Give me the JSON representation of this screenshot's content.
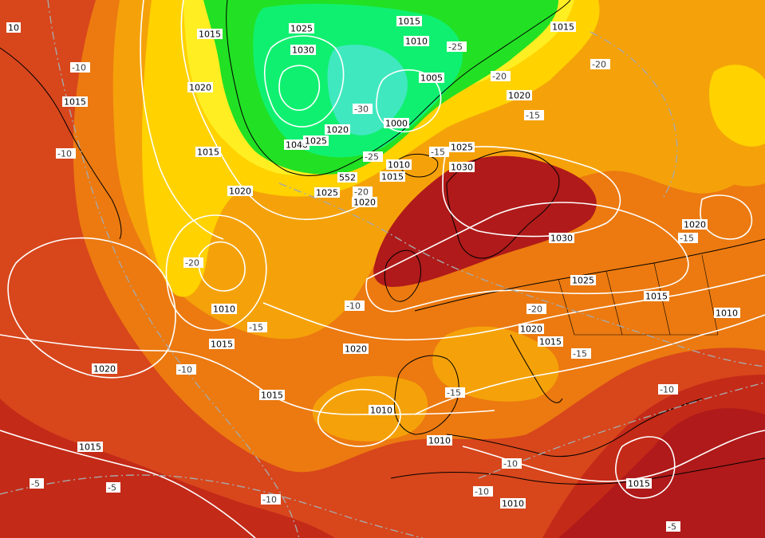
{
  "map": {
    "colors": {
      "background": "#b01a1a",
      "band_5": "#c42a18",
      "band_10": "#d8461c",
      "band_15": "#ec7a10",
      "band_20": "#f5a20a",
      "band_25": "#ffd200",
      "band_30": "#ffee22",
      "band_35": "#22e024",
      "band_40": "#10f070",
      "band_45": "#40e8c0",
      "pressure_contour": "#ffffff",
      "temp_contour": "#a8a8a8",
      "coastline": "#000000"
    },
    "pressure_labels": [
      "10",
      "1015",
      "1025",
      "1015",
      "1010",
      "1015",
      "1030",
      "1020",
      "1015",
      "1005",
      "1020",
      "1040",
      "1025",
      "1020",
      "1000",
      "1015",
      "1010",
      "1025",
      "1030",
      "1015",
      "1020",
      "1025",
      "1020",
      "1020",
      "1010",
      "1030",
      "1025",
      "1015",
      "1020",
      "1015",
      "1010",
      "1020",
      "1015",
      "1020",
      "1015",
      "1015",
      "1010",
      "1010",
      "1015",
      "1010",
      "1010",
      "552"
    ],
    "temperature_labels": [
      "-10",
      "-20",
      "-25",
      "-20",
      "-30",
      "-15",
      "-10",
      "-25",
      "-20",
      "-15",
      "-20",
      "-10",
      "-15",
      "-10",
      "-15",
      "-20",
      "-15",
      "-10",
      "-5",
      "-5",
      "-10",
      "-10",
      "-10",
      "-15",
      "-5"
    ]
  }
}
